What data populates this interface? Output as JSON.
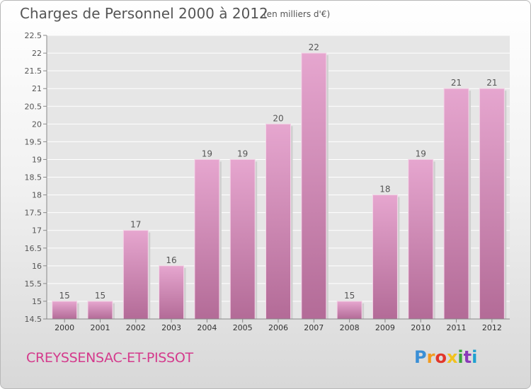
{
  "header": {
    "title": "Charges de Personnel 2000 à 2012",
    "subtitle": "(en milliers d'€)"
  },
  "footer": {
    "commune": "CREYSSENSAC-ET-PISSOT",
    "logo": "Proxiti",
    "logo_colors": [
      "#3a8fd6",
      "#f29a1e",
      "#e2362a",
      "#f2c21e",
      "#3aa63a",
      "#8a3ab9",
      "#1fa0d0"
    ]
  },
  "colors": {
    "bar_top": "#e6a6cf",
    "bar_bottom": "#b36b97",
    "plot_background": "#e6e6e6",
    "grid": "#ffffff",
    "text": "#555555"
  },
  "chart_data": {
    "type": "bar",
    "title": "Charges de Personnel 2000 à 2012",
    "subtitle": "(en milliers d'€)",
    "categories": [
      "2000",
      "2001",
      "2002",
      "2003",
      "2004",
      "2005",
      "2006",
      "2007",
      "2008",
      "2009",
      "2010",
      "2011",
      "2012"
    ],
    "values": [
      15,
      15,
      17,
      16,
      19,
      19,
      20,
      22,
      15,
      18,
      19,
      21,
      21
    ],
    "value_labels": [
      "15",
      "15",
      "17",
      "16",
      "19",
      "19",
      "20",
      "22",
      "15",
      "18",
      "19",
      "21",
      "21"
    ],
    "ylim": [
      14.5,
      22.5
    ],
    "yticks": [
      "14.5",
      "15",
      "15.5",
      "16",
      "16.5",
      "17",
      "17.5",
      "18",
      "18.5",
      "19",
      "19.5",
      "20",
      "20.5",
      "21",
      "21.5",
      "22",
      "22.5"
    ],
    "xlabel": "",
    "ylabel": "",
    "grid": true,
    "legend": "none"
  }
}
